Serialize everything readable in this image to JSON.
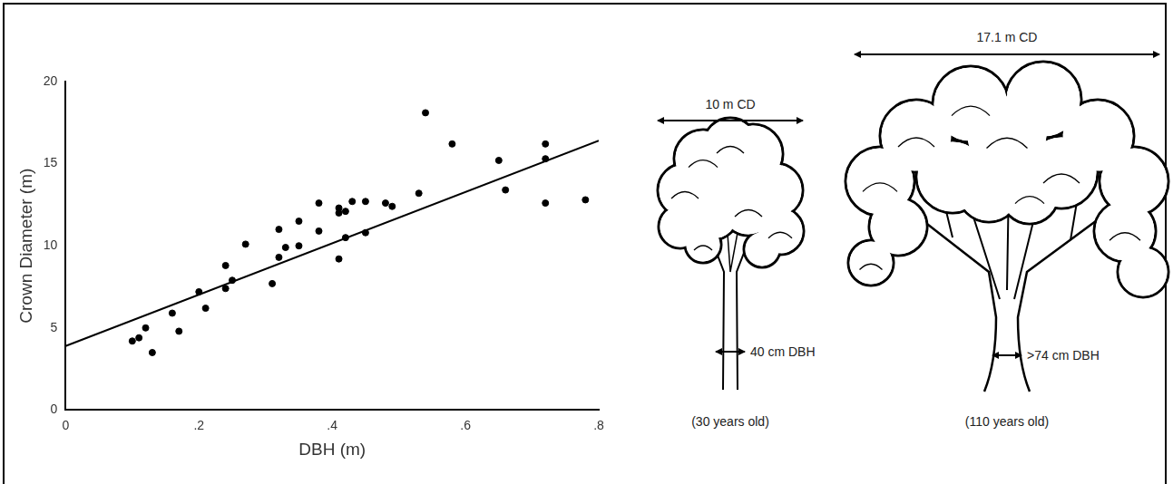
{
  "chart_data": {
    "type": "scatter",
    "title": null,
    "x_label": "DBH (m)",
    "y_label": "Crown Diameter (m)",
    "xlim": [
      0,
      0.8
    ],
    "xticks": [
      0,
      {
        "value": 0.2,
        "label": ".2"
      },
      {
        "value": 0.4,
        "label": ".4"
      },
      {
        "value": 0.6,
        "label": ".6"
      },
      {
        "value": 0.8,
        "label": ".8"
      }
    ],
    "ylim": [
      0,
      20
    ],
    "yticks": [
      0,
      5,
      10,
      15,
      20
    ],
    "grid": false,
    "series": [
      {
        "type": "scatter",
        "color": "#000000",
        "marker": "circle",
        "x": [
          0.1,
          0.11,
          0.12,
          0.13,
          0.16,
          0.17,
          0.2,
          0.21,
          0.24,
          0.24,
          0.25,
          0.27,
          0.31,
          0.32,
          0.32,
          0.33,
          0.35,
          0.35,
          0.38,
          0.38,
          0.41,
          0.41,
          0.41,
          0.42,
          0.42,
          0.43,
          0.45,
          0.45,
          0.48,
          0.49,
          0.53,
          0.54,
          0.58,
          0.65,
          0.66,
          0.72,
          0.72,
          0.72,
          0.78
        ],
        "values": [
          4.2,
          4.4,
          5.0,
          3.5,
          5.9,
          4.8,
          7.2,
          6.2,
          8.8,
          7.4,
          7.9,
          10.1,
          7.7,
          11.0,
          9.3,
          9.9,
          10.0,
          11.5,
          10.9,
          12.6,
          9.2,
          12.3,
          12.0,
          12.1,
          10.5,
          12.7,
          10.8,
          12.7,
          12.6,
          12.4,
          13.2,
          18.1,
          16.2,
          15.2,
          13.4,
          12.6,
          16.2,
          15.3,
          12.8
        ]
      },
      {
        "type": "line",
        "color": "#000000",
        "line_style": "solid",
        "x": [
          0,
          0.8
        ],
        "values": [
          3.9,
          16.4
        ]
      }
    ]
  },
  "illustration": {
    "trees": [
      {
        "crown_label": "10 m CD",
        "dbh_label": "40 cm DBH",
        "age_label": "(30 years old)"
      },
      {
        "crown_label": "17.1 m CD",
        "dbh_label": ">74 cm DBH",
        "age_label": "(110 years old)"
      }
    ]
  }
}
